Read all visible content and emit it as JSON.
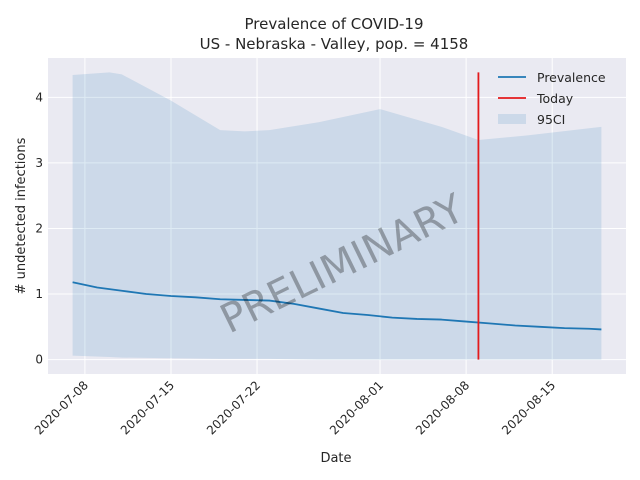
{
  "chart_data": {
    "type": "line",
    "title": "Prevalence of COVID-19",
    "subtitle": "US - Nebraska - Valley, pop. = 4158",
    "xlabel": "Date",
    "ylabel": "# undetected infections",
    "ylim": [
      -0.22,
      4.6
    ],
    "xlim": [
      "2020-07-05",
      "2020-08-21"
    ],
    "x_ticks": [
      "2020-07-08",
      "2020-07-15",
      "2020-07-22",
      "2020-08-01",
      "2020-08-08",
      "2020-08-15"
    ],
    "y_ticks": [
      0,
      1,
      2,
      3,
      4
    ],
    "grid": true,
    "legend_position": "top-right",
    "watermark": "PRELIMINARY",
    "colors": {
      "background": "#eaeaf2",
      "prevalence": "#1f77b4",
      "today": "#e31a1c",
      "ci": "#1f77b4"
    },
    "legend": [
      "Prevalence",
      "Today",
      "95CI"
    ],
    "series": [
      {
        "name": "Prevalence",
        "x": [
          "2020-07-07",
          "2020-07-09",
          "2020-07-11",
          "2020-07-13",
          "2020-07-15",
          "2020-07-17",
          "2020-07-19",
          "2020-07-21",
          "2020-07-23",
          "2020-07-25",
          "2020-07-27",
          "2020-07-29",
          "2020-07-31",
          "2020-08-02",
          "2020-08-04",
          "2020-08-06",
          "2020-08-08",
          "2020-08-10",
          "2020-08-12",
          "2020-08-14",
          "2020-08-16",
          "2020-08-18",
          "2020-08-19"
        ],
        "values": [
          1.18,
          1.1,
          1.05,
          1.0,
          0.97,
          0.95,
          0.92,
          0.91,
          0.9,
          0.85,
          0.78,
          0.71,
          0.68,
          0.64,
          0.62,
          0.61,
          0.58,
          0.55,
          0.52,
          0.5,
          0.48,
          0.47,
          0.46
        ]
      },
      {
        "name": "95CI",
        "x": [
          "2020-07-07",
          "2020-07-10",
          "2020-07-11",
          "2020-07-15",
          "2020-07-19",
          "2020-07-21",
          "2020-07-23",
          "2020-07-27",
          "2020-08-01",
          "2020-08-06",
          "2020-08-09",
          "2020-08-13",
          "2020-08-19"
        ],
        "upper": [
          4.34,
          4.38,
          4.35,
          3.95,
          3.5,
          3.48,
          3.5,
          3.62,
          3.82,
          3.55,
          3.35,
          3.42,
          3.55
        ],
        "lower": [
          0.06,
          0.04,
          0.03,
          0.02,
          0.01,
          0.01,
          0.01,
          0.0,
          0.0,
          0.0,
          0.0,
          0.0,
          0.0
        ]
      }
    ],
    "today": {
      "name": "Today",
      "date": "2020-08-09",
      "ymin": 0,
      "ymax": 4.38
    }
  }
}
